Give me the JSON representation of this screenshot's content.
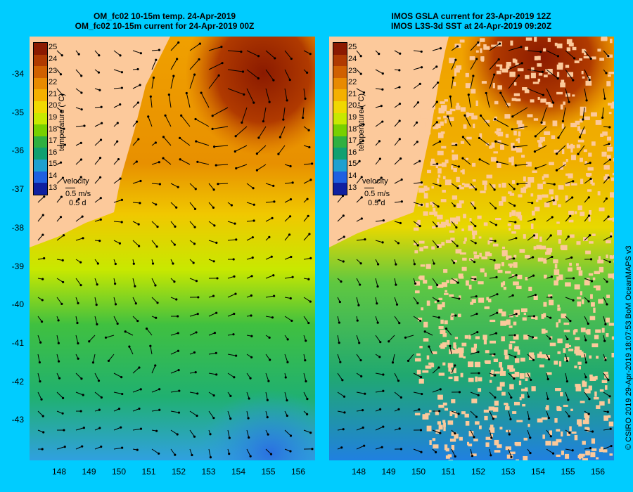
{
  "left_panel": {
    "title_line1": "OM_fc02 10-15m temp. 24-Apr-2019",
    "title_line2": "OM_fc02 10-15m current for 24-Apr-2019 00Z"
  },
  "right_panel": {
    "title_line1": "IMOS GSLA current for 23-Apr-2019 12Z",
    "title_line2": "IMOS L3S-3d SST at 24-Apr-2019 09:20Z"
  },
  "colorbar": {
    "label": "temperature (°C)",
    "ticks": [
      "25",
      "24",
      "23",
      "22",
      "21",
      "20",
      "19",
      "18",
      "17",
      "16",
      "15",
      "14",
      "13"
    ],
    "colors": [
      "#8b1a00",
      "#b03a00",
      "#d06000",
      "#e88a00",
      "#f4b000",
      "#f0d800",
      "#c8e800",
      "#78d000",
      "#30b040",
      "#10a070",
      "#20a0d0",
      "#2060e0",
      "#1020a0"
    ]
  },
  "velocity_legend": {
    "label": "velocity",
    "speed": "0.5 m/s",
    "duration": "0.5 d"
  },
  "axes": {
    "lat_ticks": [
      "-34",
      "-35",
      "-36",
      "-37",
      "-38",
      "-39",
      "-40",
      "-41",
      "-42",
      "-43"
    ],
    "lon_ticks": [
      "148",
      "149",
      "150",
      "151",
      "152",
      "153",
      "154",
      "155",
      "156"
    ]
  },
  "credit": "© CSIRO 2019   29-Apr-2019 18:07:53 BoM OceanMAPS v3",
  "colors": {
    "background": "#00ccff",
    "land": "#fcc99b",
    "arrow": "#000000"
  }
}
